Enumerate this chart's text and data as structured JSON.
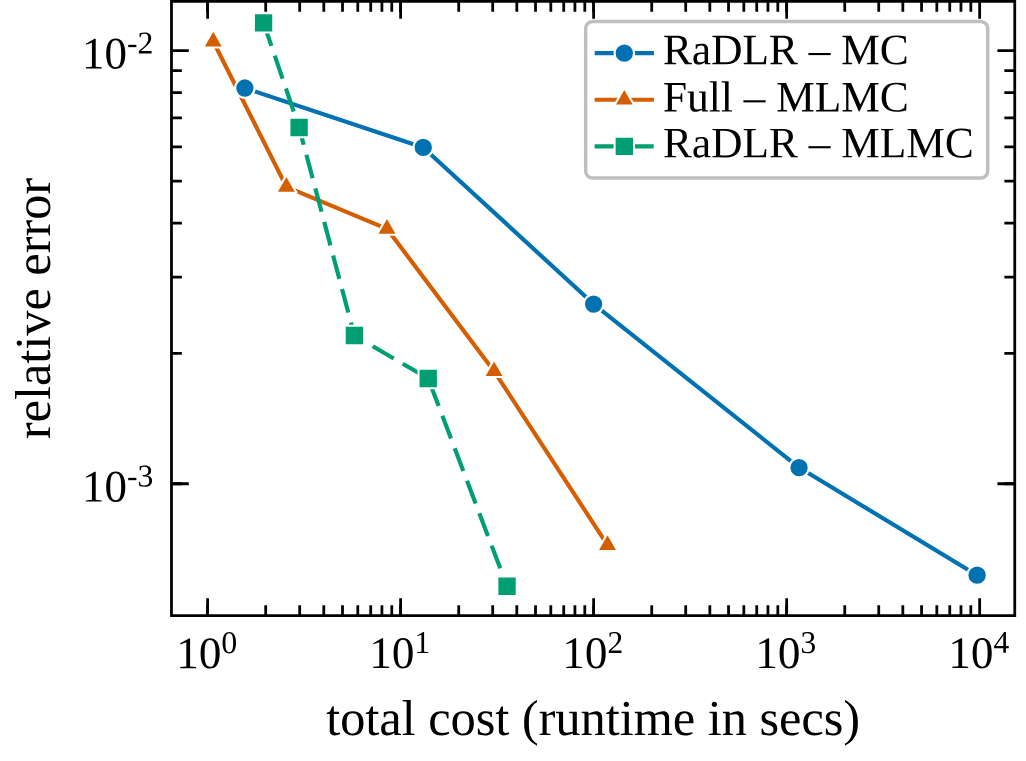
{
  "chart_data": {
    "type": "line",
    "xlabel": "total cost (runtime in secs)",
    "ylabel": "relative error",
    "log": "xy",
    "legend": "top right",
    "xlim": [
      0.65,
      15200
    ],
    "ylim": [
      0.000496,
      0.013
    ],
    "xticks": [
      {
        "value": 1,
        "label": "10$^{0}$"
      },
      {
        "value": 10,
        "label": "10$^{1}$"
      },
      {
        "value": 100,
        "label": "10$^{2}$"
      },
      {
        "value": 1000,
        "label": "10$^{3}$"
      },
      {
        "value": 10000,
        "label": "10$^{4}$"
      }
    ],
    "yticks": [
      {
        "value": 0.001,
        "label": "10$^{-3}$"
      },
      {
        "value": 0.01,
        "label": "10$^{-2}$"
      }
    ],
    "series": [
      {
        "name": "RaDLR – MC",
        "color": "#0072b2",
        "marker": "circle",
        "line_style": "solid",
        "x": [
          1.56,
          13.1,
          100,
          1160,
          9700
        ],
        "values": [
          0.0082,
          0.00598,
          0.0026,
          0.00109,
          0.000615
        ]
      },
      {
        "name": "Full – MLMC",
        "color": "#d55e00",
        "marker": "triangle",
        "line_style": "solid",
        "x": [
          1.07,
          2.56,
          8.5,
          30.5,
          118
        ],
        "values": [
          0.0105,
          0.00485,
          0.00388,
          0.00182,
          0.000722
        ]
      },
      {
        "name": "RaDLR – MLMC",
        "color": "#009e73",
        "marker": "square",
        "line_style": "dashed",
        "x": [
          1.95,
          2.98,
          5.76,
          13.9,
          35.6
        ],
        "values": [
          0.0116,
          0.00665,
          0.0022,
          0.00175,
          0.00058
        ]
      }
    ]
  }
}
